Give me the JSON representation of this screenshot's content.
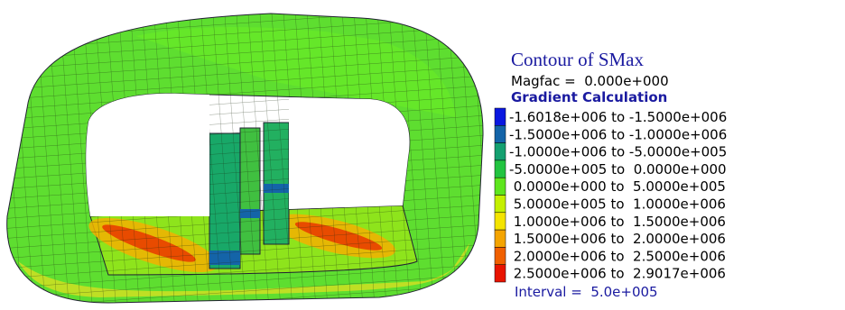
{
  "legend": {
    "title": "Contour of SMax",
    "magfac": "Magfac =  0.000e+000",
    "method": "Gradient Calculation",
    "items": [
      {
        "color": "#0a18e0",
        "label": "-1.6018e+006 to -1.5000e+006"
      },
      {
        "color": "#1464a8",
        "label": "-1.5000e+006 to -1.0000e+006"
      },
      {
        "color": "#14a070",
        "label": "-1.0000e+006 to -5.0000e+005"
      },
      {
        "color": "#22c440",
        "label": "-5.0000e+005 to  0.0000e+000"
      },
      {
        "color": "#5ee61e",
        "label": " 0.0000e+000 to  5.0000e+005"
      },
      {
        "color": "#c4f000",
        "label": " 5.0000e+005 to  1.0000e+006"
      },
      {
        "color": "#f4e400",
        "label": " 1.0000e+006 to  1.5000e+006"
      },
      {
        "color": "#f4a400",
        "label": " 1.5000e+006 to  2.0000e+006"
      },
      {
        "color": "#f06000",
        "label": " 2.0000e+006 to  2.5000e+006"
      },
      {
        "color": "#e81400",
        "label": " 2.5000e+006 to  2.9017e+006"
      }
    ],
    "interval": "Interval =  5.0e+005"
  }
}
